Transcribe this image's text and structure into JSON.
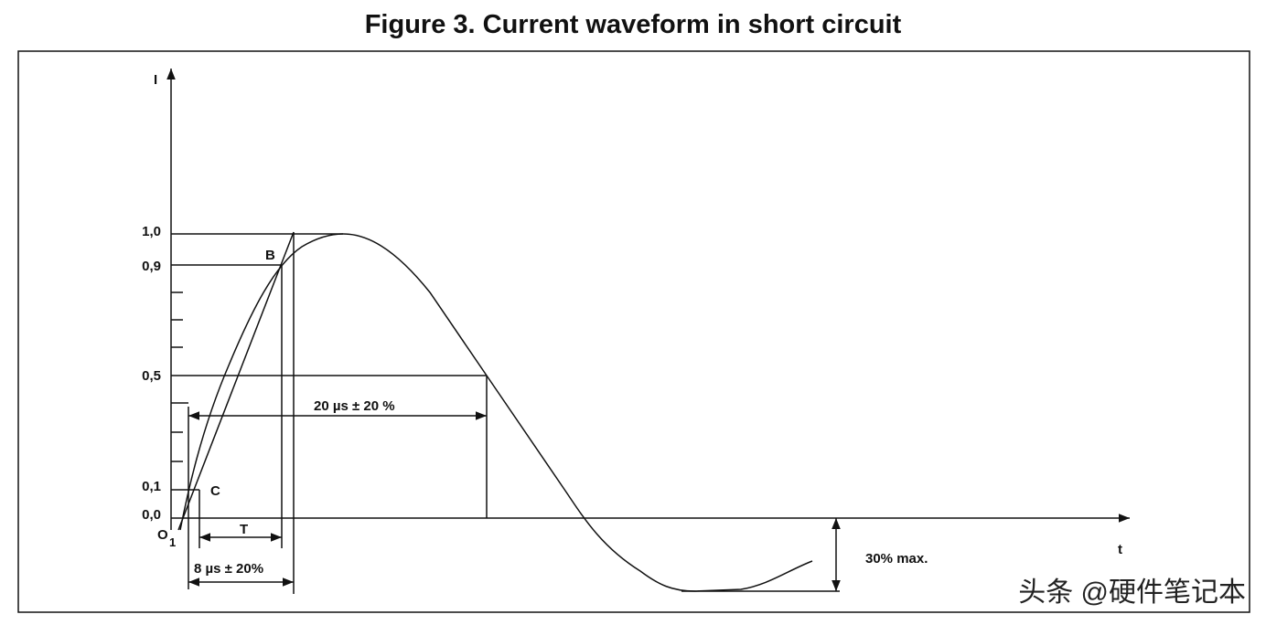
{
  "title": "Figure 3. Current waveform in short circuit",
  "axes": {
    "y_label": "I",
    "x_label": "t"
  },
  "y_levels": [
    "1,0",
    "0,9",
    "0,5",
    "0,1",
    "0,0"
  ],
  "points": {
    "b": "B",
    "c": "C",
    "o": "O",
    "o_sub": "1"
  },
  "dimensions": {
    "t": "T",
    "front": "8 µs ± 20%",
    "half": "20 µs ± 20 %",
    "undershoot": "30% max."
  },
  "watermark": "头条 @硬件笔记本"
}
